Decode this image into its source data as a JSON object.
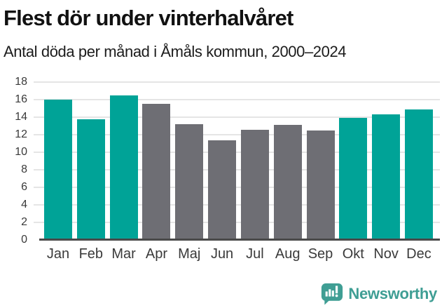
{
  "header": {
    "title": "Flest dör under vinterhalvåret",
    "subtitle": "Antal döda per månad i Åmåls kommun, 2000–2024"
  },
  "chart_data": {
    "type": "bar",
    "title": "Flest dör under vinterhalvåret",
    "subtitle": "Antal döda per månad i Åmåls kommun, 2000–2024",
    "categories": [
      "Jan",
      "Feb",
      "Mar",
      "Apr",
      "Maj",
      "Jun",
      "Jul",
      "Aug",
      "Sep",
      "Okt",
      "Nov",
      "Dec"
    ],
    "values": [
      16.0,
      13.8,
      16.5,
      15.5,
      13.2,
      11.4,
      12.6,
      13.1,
      12.5,
      13.9,
      14.3,
      14.9
    ],
    "highlighted": [
      true,
      true,
      true,
      false,
      false,
      false,
      false,
      false,
      false,
      true,
      true,
      true
    ],
    "highlight_color": "#00a397",
    "muted_color": "#6e6e74",
    "xlabel": "",
    "ylabel": "",
    "ylim": [
      0,
      18
    ],
    "yticks": [
      0,
      2,
      4,
      6,
      8,
      10,
      12,
      14,
      16,
      18
    ],
    "grid": true,
    "legend_position": "none",
    "gridline_color": "#e5e5e5",
    "axis_line_color": "#4a4a4a",
    "tick_label_color": "#3a3a3a"
  },
  "branding": {
    "logo_text": "Newsworthy",
    "logo_color": "#3f9e94",
    "logo_icon": "bar-chart-speech-bubble"
  }
}
